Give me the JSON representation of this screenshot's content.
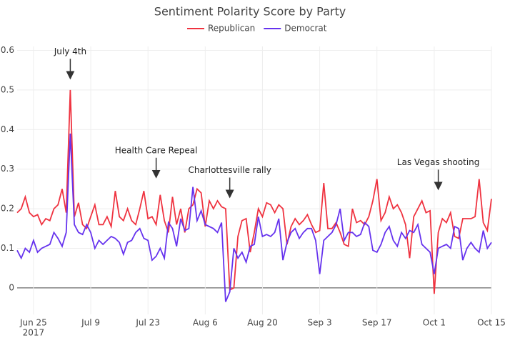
{
  "chart_data": {
    "type": "line",
    "title": "Sentiment Polarity Score by Party",
    "x": [
      "2017-06-21",
      "2017-06-22",
      "2017-06-23",
      "2017-06-24",
      "2017-06-25",
      "2017-06-26",
      "2017-06-27",
      "2017-06-28",
      "2017-06-29",
      "2017-06-30",
      "2017-07-01",
      "2017-07-02",
      "2017-07-03",
      "2017-07-04",
      "2017-07-05",
      "2017-07-06",
      "2017-07-07",
      "2017-07-08",
      "2017-07-09",
      "2017-07-10",
      "2017-07-11",
      "2017-07-12",
      "2017-07-13",
      "2017-07-14",
      "2017-07-15",
      "2017-07-16",
      "2017-07-17",
      "2017-07-18",
      "2017-07-19",
      "2017-07-20",
      "2017-07-21",
      "2017-07-22",
      "2017-07-23",
      "2017-07-24",
      "2017-07-25",
      "2017-07-26",
      "2017-07-27",
      "2017-07-28",
      "2017-07-29",
      "2017-07-30",
      "2017-07-31",
      "2017-08-01",
      "2017-08-02",
      "2017-08-03",
      "2017-08-04",
      "2017-08-05",
      "2017-08-06",
      "2017-08-07",
      "2017-08-08",
      "2017-08-09",
      "2017-08-10",
      "2017-08-11",
      "2017-08-12",
      "2017-08-13",
      "2017-08-14",
      "2017-08-15",
      "2017-08-16",
      "2017-08-17",
      "2017-08-18",
      "2017-08-19",
      "2017-08-20",
      "2017-08-21",
      "2017-08-22",
      "2017-08-23",
      "2017-08-24",
      "2017-08-25",
      "2017-08-26",
      "2017-08-27",
      "2017-08-28",
      "2017-08-29",
      "2017-08-30",
      "2017-08-31",
      "2017-09-01",
      "2017-09-02",
      "2017-09-03",
      "2017-09-04",
      "2017-09-05",
      "2017-09-06",
      "2017-09-07",
      "2017-09-08",
      "2017-09-09",
      "2017-09-10",
      "2017-09-11",
      "2017-09-12",
      "2017-09-13",
      "2017-09-14",
      "2017-09-15",
      "2017-09-16",
      "2017-09-17",
      "2017-09-18",
      "2017-09-19",
      "2017-09-20",
      "2017-09-21",
      "2017-09-22",
      "2017-09-23",
      "2017-09-24",
      "2017-09-25",
      "2017-09-26",
      "2017-09-27",
      "2017-09-28",
      "2017-09-29",
      "2017-09-30",
      "2017-10-01",
      "2017-10-02",
      "2017-10-03",
      "2017-10-04",
      "2017-10-05",
      "2017-10-06",
      "2017-10-07",
      "2017-10-08",
      "2017-10-09",
      "2017-10-10",
      "2017-10-11",
      "2017-10-12",
      "2017-10-13",
      "2017-10-14",
      "2017-10-15"
    ],
    "series": [
      {
        "name": "Republican",
        "color": "#ef3340",
        "values": [
          0.19,
          0.2,
          0.23,
          0.19,
          0.18,
          0.185,
          0.16,
          0.175,
          0.17,
          0.2,
          0.21,
          0.25,
          0.19,
          0.5,
          0.18,
          0.215,
          0.16,
          0.15,
          0.18,
          0.21,
          0.16,
          0.16,
          0.18,
          0.155,
          0.245,
          0.18,
          0.17,
          0.2,
          0.17,
          0.16,
          0.2,
          0.245,
          0.175,
          0.18,
          0.16,
          0.235,
          0.17,
          0.14,
          0.23,
          0.16,
          0.2,
          0.14,
          0.2,
          0.21,
          0.25,
          0.24,
          0.155,
          0.22,
          0.2,
          0.22,
          0.205,
          0.2,
          -0.005,
          0.0,
          0.13,
          0.17,
          0.175,
          0.09,
          0.14,
          0.2,
          0.18,
          0.215,
          0.21,
          0.19,
          0.21,
          0.2,
          0.11,
          0.155,
          0.175,
          0.16,
          0.17,
          0.185,
          0.16,
          0.14,
          0.145,
          0.265,
          0.15,
          0.15,
          0.165,
          0.14,
          0.11,
          0.105,
          0.2,
          0.165,
          0.17,
          0.16,
          0.18,
          0.22,
          0.275,
          0.17,
          0.19,
          0.23,
          0.2,
          0.21,
          0.19,
          0.16,
          0.075,
          0.18,
          0.2,
          0.22,
          0.19,
          0.195,
          -0.015,
          0.14,
          0.175,
          0.165,
          0.19,
          0.13,
          0.125,
          0.175,
          0.175,
          0.175,
          0.18,
          0.275,
          0.165,
          0.145,
          0.225
        ]
      },
      {
        "name": "Democrat",
        "color": "#6633ee",
        "values": [
          0.095,
          0.075,
          0.1,
          0.09,
          0.12,
          0.09,
          0.1,
          0.105,
          0.11,
          0.14,
          0.125,
          0.105,
          0.14,
          0.39,
          0.16,
          0.14,
          0.135,
          0.16,
          0.14,
          0.1,
          0.12,
          0.11,
          0.12,
          0.13,
          0.125,
          0.115,
          0.085,
          0.115,
          0.12,
          0.14,
          0.15,
          0.125,
          0.12,
          0.07,
          0.08,
          0.1,
          0.075,
          0.165,
          0.15,
          0.105,
          0.175,
          0.145,
          0.15,
          0.255,
          0.17,
          0.195,
          0.16,
          0.155,
          0.15,
          0.14,
          0.165,
          -0.035,
          -0.01,
          0.1,
          0.075,
          0.09,
          0.065,
          0.105,
          0.11,
          0.18,
          0.13,
          0.135,
          0.13,
          0.14,
          0.175,
          0.07,
          0.115,
          0.14,
          0.15,
          0.125,
          0.14,
          0.15,
          0.15,
          0.12,
          0.035,
          0.12,
          0.13,
          0.14,
          0.16,
          0.2,
          0.12,
          0.14,
          0.14,
          0.13,
          0.135,
          0.165,
          0.155,
          0.095,
          0.09,
          0.11,
          0.14,
          0.155,
          0.12,
          0.105,
          0.14,
          0.125,
          0.145,
          0.14,
          0.16,
          0.11,
          0.1,
          0.09,
          0.035,
          0.1,
          0.105,
          0.11,
          0.1,
          0.155,
          0.15,
          0.07,
          0.1,
          0.115,
          0.1,
          0.09,
          0.145,
          0.1,
          0.115
        ]
      }
    ],
    "xlim": [
      "2017-06-21",
      "2017-10-15"
    ],
    "xticks": [
      {
        "value": "2017-06-25",
        "label": "Jun 25"
      },
      {
        "value": "2017-07-09",
        "label": "Jul 9"
      },
      {
        "value": "2017-07-23",
        "label": "Jul 23"
      },
      {
        "value": "2017-08-06",
        "label": "Aug 6"
      },
      {
        "value": "2017-08-20",
        "label": "Aug 20"
      },
      {
        "value": "2017-09-03",
        "label": "Sep 3"
      },
      {
        "value": "2017-09-17",
        "label": "Sep 17"
      },
      {
        "value": "2017-10-01",
        "label": "Oct 1"
      },
      {
        "value": "2017-10-15",
        "label": "Oct 15"
      }
    ],
    "x_year_label": "2017",
    "ylim": [
      -0.067,
      0.61
    ],
    "yticks": [
      0,
      0.1,
      0.2,
      0.3,
      0.4,
      0.5,
      0.6
    ],
    "grid": true,
    "legend": "top",
    "annotations": [
      {
        "text": "July 4th",
        "x": "2017-07-04",
        "y": 0.53
      },
      {
        "text": "Health Care Repeal",
        "x": "2017-07-25",
        "y": 0.28
      },
      {
        "text": "Charlottesville rally",
        "x": "2017-08-12",
        "y": 0.23
      },
      {
        "text": "Las Vegas shooting",
        "x": "2017-10-02",
        "y": 0.25
      }
    ]
  }
}
